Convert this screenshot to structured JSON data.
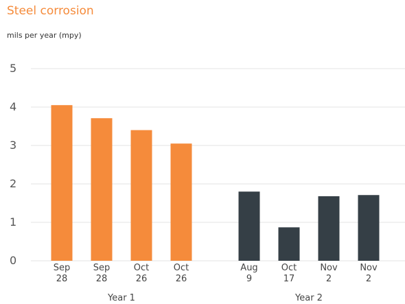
{
  "chart_data": {
    "type": "bar",
    "title": "Steel corrosion",
    "subtitle": "mils per year (mpy)",
    "ylim": [
      0,
      5
    ],
    "yticks": [
      0,
      1,
      2,
      3,
      4,
      5
    ],
    "grid": true,
    "groups": [
      {
        "name": "Year 1",
        "color": "#f58b3b",
        "categories": [
          "Sep 28",
          "Sep 28",
          "Oct 26",
          "Oct 26"
        ],
        "values": [
          4.05,
          3.71,
          3.4,
          3.05
        ]
      },
      {
        "name": "Year 2",
        "color": "#353f46",
        "categories": [
          "Aug 9",
          "Oct 17",
          "Nov 2",
          "Nov 2"
        ],
        "values": [
          1.8,
          0.87,
          1.68,
          1.71
        ]
      }
    ]
  }
}
